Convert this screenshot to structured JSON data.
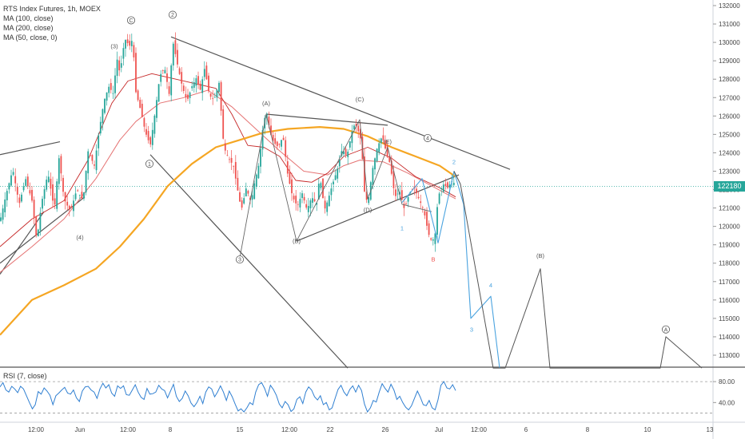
{
  "legend": {
    "title": "RTS Index Futures, 1h, MOEX",
    "ma100": "MA (100, close)",
    "ma200": "MA (200, close)",
    "ma50": "MA (50, close, 0)"
  },
  "rsi_label": "RSI (7, close)",
  "last_price": "122180",
  "colors": {
    "up": "#26a69a",
    "down": "#ef5350",
    "ma200": "#f5a623",
    "ma100": "#e57373",
    "ma50": "#c62828",
    "wave": "#555555",
    "forecast_blue": "#4aa3df",
    "rsi": "#2f7fd1"
  },
  "chart_data": [
    {
      "type": "line",
      "name": "price",
      "y_ticks": [
        "132000",
        "131000",
        "130000",
        "129000",
        "128000",
        "127000",
        "126000",
        "125000",
        "124000",
        "123000",
        "122000",
        "121000",
        "120000",
        "119000",
        "118000",
        "117000",
        "116000",
        "115000",
        "114000",
        "113000"
      ],
      "x_ticks": [
        "12:00",
        "Jun",
        "12:00",
        "8",
        "15",
        "12:00",
        "22",
        "26",
        "Jul",
        "12:00",
        "6",
        "8",
        "10",
        "13"
      ],
      "ylim": [
        112300,
        132500
      ],
      "close_path": [
        [
          0,
          120300
        ],
        [
          8,
          121800
        ],
        [
          16,
          123100
        ],
        [
          24,
          121200
        ],
        [
          32,
          122600
        ],
        [
          40,
          121400
        ],
        [
          46,
          119200
        ],
        [
          52,
          121300
        ],
        [
          60,
          122900
        ],
        [
          68,
          120900
        ],
        [
          74,
          123800
        ],
        [
          80,
          121500
        ],
        [
          88,
          120800
        ],
        [
          96,
          122000
        ],
        [
          104,
          121400
        ],
        [
          110,
          124100
        ],
        [
          118,
          123300
        ],
        [
          124,
          125200
        ],
        [
          130,
          126800
        ],
        [
          136,
          127600
        ],
        [
          142,
          127200
        ],
        [
          146,
          129200
        ],
        [
          150,
          128300
        ],
        [
          156,
          130200
        ],
        [
          162,
          129800
        ],
        [
          166,
          130200
        ],
        [
          170,
          127300
        ],
        [
          176,
          126300
        ],
        [
          182,
          125100
        ],
        [
          188,
          124400
        ],
        [
          194,
          126200
        ],
        [
          200,
          128200
        ],
        [
          206,
          128600
        ],
        [
          212,
          127100
        ],
        [
          216,
          130100
        ],
        [
          222,
          128800
        ],
        [
          228,
          127600
        ],
        [
          234,
          126800
        ],
        [
          240,
          127600
        ],
        [
          246,
          128100
        ],
        [
          250,
          127300
        ],
        [
          256,
          128600
        ],
        [
          262,
          127100
        ],
        [
          268,
          126900
        ],
        [
          274,
          127800
        ],
        [
          280,
          124300
        ],
        [
          286,
          123700
        ],
        [
          292,
          123300
        ],
        [
          298,
          121800
        ],
        [
          302,
          120900
        ],
        [
          308,
          122100
        ],
        [
          314,
          121300
        ],
        [
          318,
          122300
        ],
        [
          324,
          123400
        ],
        [
          330,
          125800
        ],
        [
          334,
          126100
        ],
        [
          338,
          125100
        ],
        [
          342,
          124600
        ],
        [
          348,
          124300
        ],
        [
          354,
          124900
        ],
        [
          360,
          122800
        ],
        [
          366,
          121600
        ],
        [
          372,
          121100
        ],
        [
          378,
          121800
        ],
        [
          384,
          120900
        ],
        [
          390,
          121600
        ],
        [
          396,
          121200
        ],
        [
          400,
          122800
        ],
        [
          406,
          120900
        ],
        [
          410,
          121400
        ],
        [
          416,
          122300
        ],
        [
          422,
          123100
        ],
        [
          428,
          124200
        ],
        [
          434,
          123800
        ],
        [
          440,
          125100
        ],
        [
          444,
          125600
        ],
        [
          448,
          125200
        ],
        [
          452,
          124600
        ],
        [
          456,
          121900
        ],
        [
          460,
          121200
        ],
        [
          466,
          123100
        ],
        [
          472,
          124300
        ],
        [
          478,
          124900
        ],
        [
          484,
          123900
        ],
        [
          488,
          123400
        ],
        [
          494,
          121600
        ],
        [
          500,
          121900
        ],
        [
          506,
          120900
        ],
        [
          512,
          121800
        ],
        [
          518,
          122100
        ],
        [
          524,
          121500
        ],
        [
          530,
          120900
        ],
        [
          536,
          119600
        ],
        [
          540,
          119200
        ],
        [
          544,
          119400
        ],
        [
          548,
          121600
        ],
        [
          554,
          122300
        ],
        [
          560,
          122100
        ],
        [
          566,
          122500
        ],
        [
          570,
          122200
        ]
      ],
      "ma_200": [
        [
          0,
          114100
        ],
        [
          40,
          116000
        ],
        [
          80,
          116800
        ],
        [
          120,
          117700
        ],
        [
          150,
          118900
        ],
        [
          180,
          120400
        ],
        [
          210,
          122200
        ],
        [
          240,
          123400
        ],
        [
          270,
          124300
        ],
        [
          300,
          124700
        ],
        [
          330,
          125100
        ],
        [
          360,
          125300
        ],
        [
          400,
          125400
        ],
        [
          430,
          125300
        ],
        [
          460,
          124900
        ],
        [
          490,
          124300
        ],
        [
          520,
          123800
        ],
        [
          550,
          123300
        ],
        [
          570,
          122700
        ]
      ],
      "ma_100": [
        [
          0,
          117500
        ],
        [
          40,
          118900
        ],
        [
          80,
          120400
        ],
        [
          120,
          122600
        ],
        [
          150,
          124700
        ],
        [
          170,
          125700
        ],
        [
          200,
          126700
        ],
        [
          230,
          127000
        ],
        [
          260,
          127400
        ],
        [
          290,
          126500
        ],
        [
          320,
          125300
        ],
        [
          350,
          124100
        ],
        [
          380,
          123000
        ],
        [
          410,
          122800
        ],
        [
          430,
          123300
        ],
        [
          450,
          123600
        ],
        [
          480,
          123500
        ],
        [
          510,
          122900
        ],
        [
          540,
          122200
        ],
        [
          570,
          121500
        ]
      ],
      "ma_50": [
        [
          0,
          118900
        ],
        [
          40,
          120400
        ],
        [
          80,
          121400
        ],
        [
          110,
          123600
        ],
        [
          140,
          126700
        ],
        [
          160,
          127900
        ],
        [
          190,
          128300
        ],
        [
          220,
          128000
        ],
        [
          250,
          127700
        ],
        [
          270,
          127500
        ],
        [
          290,
          126100
        ],
        [
          310,
          124400
        ],
        [
          330,
          124300
        ],
        [
          350,
          123800
        ],
        [
          370,
          122500
        ],
        [
          390,
          122400
        ],
        [
          410,
          122900
        ],
        [
          430,
          123800
        ],
        [
          460,
          124300
        ],
        [
          490,
          123700
        ],
        [
          520,
          122700
        ],
        [
          550,
          122100
        ],
        [
          570,
          121600
        ]
      ],
      "wave_labels": [
        {
          "text": "C",
          "x": 164,
          "y": 131200,
          "circle": true
        },
        {
          "text": "(3)",
          "x": 143,
          "y": 129800,
          "circle": false
        },
        {
          "text": "2",
          "x": 216,
          "y": 131500,
          "circle": true
        },
        {
          "text": "1",
          "x": 187,
          "y": 123400,
          "circle": true
        },
        {
          "text": "(4)",
          "x": 100,
          "y": 119400,
          "circle": false
        },
        {
          "text": "3",
          "x": 300,
          "y": 118200,
          "circle": true
        },
        {
          "text": "(A)",
          "x": 333,
          "y": 126700,
          "circle": false
        },
        {
          "text": "(B)",
          "x": 371,
          "y": 119200,
          "circle": false
        },
        {
          "text": "(C)",
          "x": 450,
          "y": 126900,
          "circle": false
        },
        {
          "text": "(D)",
          "x": 460,
          "y": 120900,
          "circle": false
        },
        {
          "text": "(E)",
          "x": 485,
          "y": 124600,
          "circle": false
        },
        {
          "text": "4",
          "x": 535,
          "y": 124800,
          "circle": true
        },
        {
          "text": "1",
          "x": 503,
          "y": 119900,
          "circle": false,
          "color": "#4aa3df"
        },
        {
          "text": "2",
          "x": 568,
          "y": 123500,
          "circle": false,
          "color": "#4aa3df"
        },
        {
          "text": "B",
          "x": 542,
          "y": 118200,
          "circle": false,
          "color": "#ef5350"
        },
        {
          "text": "3",
          "x": 590,
          "y": 114400,
          "circle": false,
          "color": "#4aa3df"
        },
        {
          "text": "4",
          "x": 614,
          "y": 116800,
          "circle": false,
          "color": "#4aa3df"
        },
        {
          "text": "(B)",
          "x": 676,
          "y": 118400,
          "circle": false
        },
        {
          "text": "A",
          "x": 833,
          "y": 114400,
          "circle": true
        }
      ],
      "trendlines": [
        {
          "from": [
            0,
            123900
          ],
          "to": [
            75,
            124600
          ]
        },
        {
          "from": [
            0,
            118000
          ],
          "to": [
            106,
            121600
          ]
        },
        {
          "from": [
            214,
            130300
          ],
          "to": [
            638,
            123100
          ]
        },
        {
          "from": [
            188,
            123900
          ],
          "to": [
            435,
            112300
          ]
        },
        {
          "from": [
            0,
            117400
          ],
          "to": [
            55,
            120800
          ]
        },
        {
          "from": [
            333,
            126100
          ],
          "to": [
            485,
            125500
          ]
        },
        {
          "from": [
            371,
            119200
          ],
          "to": [
            574,
            122800
          ]
        }
      ],
      "gray_wave": [
        [
          300,
          118300
        ],
        [
          333,
          126100
        ],
        [
          371,
          119200
        ],
        [
          450,
          125800
        ],
        [
          460,
          121500
        ],
        [
          485,
          124300
        ],
        [
          503,
          121200
        ],
        [
          540,
          120800
        ]
      ],
      "blue_forecast": [
        [
          503,
          121300
        ],
        [
          528,
          122600
        ],
        [
          548,
          119100
        ],
        [
          568,
          123000
        ],
        [
          580,
          121200
        ],
        [
          589,
          115000
        ],
        [
          614,
          116200
        ],
        [
          625,
          112300
        ]
      ],
      "gray_forecast": [
        [
          568,
          123000
        ],
        [
          576,
          122300
        ],
        [
          617,
          112300
        ],
        [
          632,
          112300
        ],
        [
          676,
          117700
        ],
        [
          688,
          112300
        ],
        [
          826,
          112300
        ],
        [
          833,
          114000
        ],
        [
          878,
          112300
        ]
      ]
    },
    {
      "type": "line",
      "name": "RSI",
      "y_ticks": [
        "80.00",
        "40.00"
      ],
      "ylim": [
        10,
        100
      ],
      "levels": [
        80,
        20
      ],
      "values": [
        70,
        78,
        64,
        60,
        71,
        66,
        59,
        71,
        66,
        53,
        40,
        28,
        36,
        61,
        56,
        68,
        62,
        54,
        36,
        53,
        58,
        64,
        69,
        58,
        56,
        64,
        49,
        42,
        62,
        70,
        71,
        64,
        60,
        48,
        66,
        77,
        68,
        74,
        58,
        52,
        72,
        67,
        72,
        55,
        54,
        64,
        74,
        60,
        50,
        46,
        67,
        56,
        57,
        60,
        73,
        66,
        63,
        49,
        62,
        75,
        52,
        42,
        48,
        62,
        53,
        39,
        32,
        40,
        52,
        38,
        60,
        70,
        66,
        51,
        60,
        72,
        60,
        44,
        62,
        51,
        37,
        24,
        28,
        22,
        30,
        40,
        36,
        60,
        74,
        78,
        67,
        52,
        73,
        65,
        54,
        37,
        30,
        42,
        36,
        23,
        28,
        46,
        51,
        38,
        60,
        70,
        64,
        51,
        45,
        53,
        36,
        40,
        26,
        30,
        48,
        65,
        73,
        60,
        53,
        65,
        72,
        60,
        73,
        63,
        37,
        22,
        30,
        44,
        41,
        60,
        76,
        67,
        60,
        75,
        64,
        46,
        52,
        40,
        31,
        26,
        34,
        48,
        62,
        50,
        36,
        34,
        44,
        30,
        26,
        45,
        73,
        80,
        68,
        66,
        74,
        63
      ]
    }
  ]
}
